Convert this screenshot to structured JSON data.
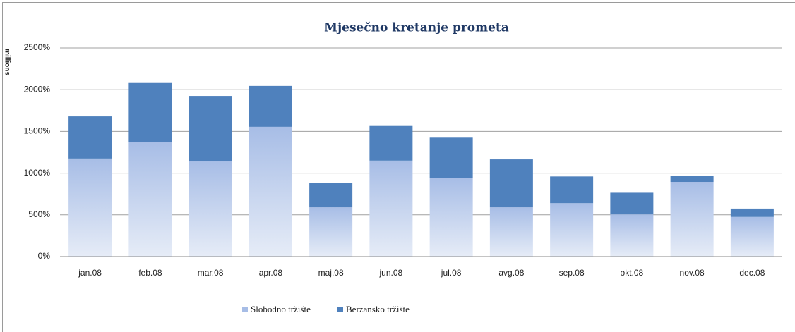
{
  "chart_data": {
    "type": "stacked_bar",
    "title": "Mjesečno kretanje prometa",
    "y_label": "millions",
    "categories": [
      "jan.08",
      "feb.08",
      "mar.08",
      "apr.08",
      "maj.08",
      "jun.08",
      "jul.08",
      "avg.08",
      "sep.08",
      "okt.08",
      "nov.08",
      "dec.08"
    ],
    "series": [
      {
        "name": "Slobodno tržište",
        "color": "#a7bde6",
        "values": [
          1175,
          1370,
          1140,
          1555,
          590,
          1150,
          940,
          590,
          640,
          505,
          895,
          475
        ]
      },
      {
        "name": "Berzansko tržište",
        "color": "#4f81bd",
        "values": [
          505,
          710,
          785,
          490,
          290,
          415,
          485,
          575,
          320,
          260,
          75,
          100
        ]
      }
    ],
    "ylim": [
      0,
      2500
    ],
    "yticks": [
      {
        "value": 0,
        "label": "0%"
      },
      {
        "value": 500,
        "label": "500%"
      },
      {
        "value": 1000,
        "label": "1000%"
      },
      {
        "value": 1500,
        "label": "1500%"
      },
      {
        "value": 2000,
        "label": "2000%"
      },
      {
        "value": 2500,
        "label": "2500%"
      }
    ],
    "grid": true,
    "legend": "bottom"
  }
}
